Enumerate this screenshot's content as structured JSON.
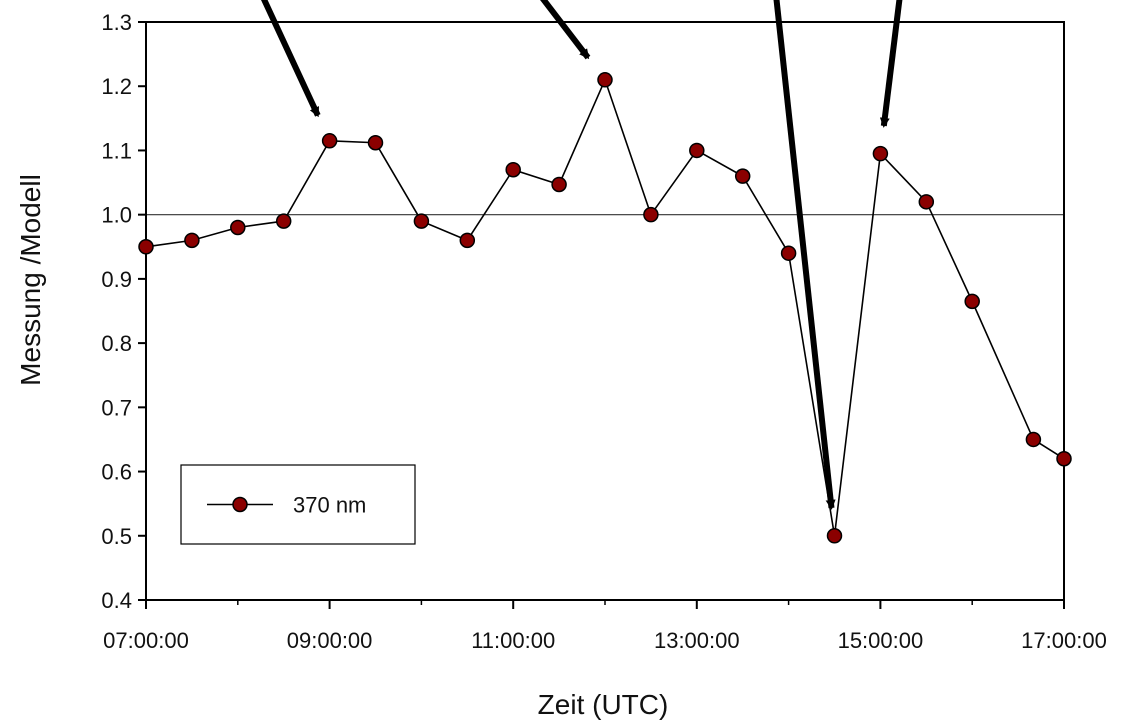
{
  "chart_data": {
    "type": "line",
    "xlabel": "Zeit (UTC)",
    "ylabel": "Messung /Modell",
    "xlim": [
      "07:00:00",
      "17:00:00"
    ],
    "ylim": [
      0.4,
      1.3
    ],
    "x_ticks": [
      "07:00:00",
      "09:00:00",
      "11:00:00",
      "13:00:00",
      "15:00:00",
      "17:00:00"
    ],
    "y_ticks": [
      "0.4",
      "0.5",
      "0.6",
      "0.7",
      "0.8",
      "0.9",
      "1.0",
      "1.1",
      "1.2",
      "1.3"
    ],
    "grid": false,
    "legend_position": "bottom-left",
    "series": [
      {
        "name": "370 nm",
        "color": "#8b0000",
        "x": [
          "07:00:00",
          "07:30:00",
          "08:00:00",
          "08:30:00",
          "09:00:00",
          "09:30:00",
          "10:00:00",
          "10:30:00",
          "11:00:00",
          "11:30:00",
          "12:00:00",
          "12:30:00",
          "13:00:00",
          "13:30:00",
          "14:00:00",
          "14:30:00",
          "15:00:00",
          "15:30:00",
          "16:00:00",
          "16:40:00",
          "17:00:00"
        ],
        "y": [
          0.95,
          0.96,
          0.98,
          0.99,
          1.115,
          1.112,
          0.99,
          0.96,
          1.07,
          1.047,
          1.21,
          1.0,
          1.1,
          1.06,
          0.94,
          0.5,
          1.095,
          1.02,
          0.865,
          0.65,
          0.62
        ]
      }
    ],
    "reference_line": {
      "y": 1.0
    },
    "annotations": [
      {
        "type": "arrow",
        "points_to": "09:00:00"
      },
      {
        "type": "arrow",
        "points_to": "12:00:00"
      },
      {
        "type": "arrow",
        "points_to": "14:30:00"
      },
      {
        "type": "arrow",
        "points_to": "15:00:00"
      }
    ]
  }
}
